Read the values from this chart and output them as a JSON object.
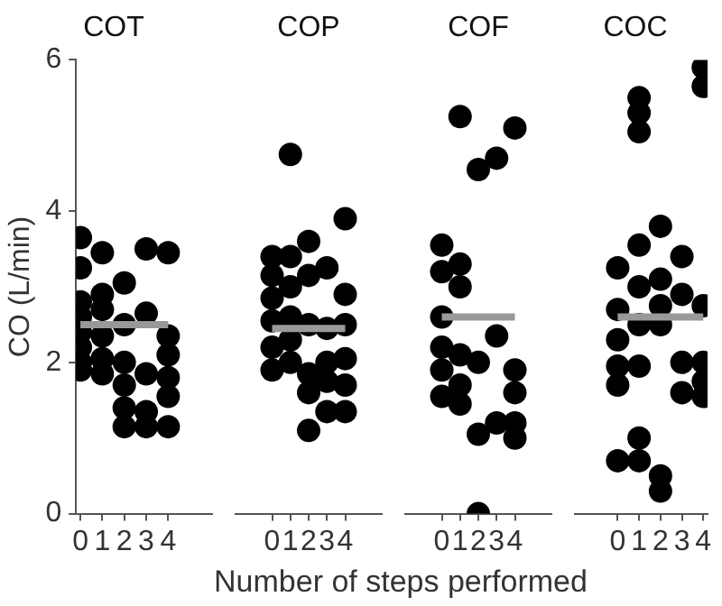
{
  "chart_data": [
    {
      "type": "scatter",
      "title": "COT",
      "xlabel": "Number of steps performed",
      "ylabel": "CO (L/min)",
      "xlim": [
        -0.2,
        6
      ],
      "xticks": [
        0,
        1,
        2,
        3,
        4
      ],
      "ylim": [
        0,
        6
      ],
      "yticks": [
        0,
        2,
        4,
        6
      ],
      "grid": false,
      "legend": false,
      "marker": "circle",
      "series": [
        {
          "color": "#000000",
          "x": [
            0,
            0,
            0,
            0,
            0,
            0,
            0,
            0,
            1,
            1,
            1,
            1,
            1,
            1,
            2,
            2,
            2,
            2,
            2,
            2,
            3,
            3,
            3,
            3,
            3,
            4,
            4,
            4,
            4,
            4,
            4
          ],
          "values": [
            3.65,
            3.25,
            2.8,
            2.6,
            2.4,
            2.2,
            2.0,
            1.9,
            3.45,
            2.9,
            2.7,
            2.35,
            2.05,
            1.85,
            3.05,
            2.5,
            2.0,
            1.7,
            1.4,
            1.15,
            3.5,
            2.65,
            1.85,
            1.35,
            1.15,
            3.45,
            2.35,
            2.1,
            1.8,
            1.55,
            1.15
          ]
        },
        {
          "type": "line",
          "marker": "none",
          "color": "#999999",
          "x": [
            0,
            4
          ],
          "values": [
            2.5,
            2.5
          ]
        }
      ]
    },
    {
      "type": "scatter",
      "title": "COP",
      "xlim": [
        -2,
        6
      ],
      "xticks": [
        0,
        1,
        2,
        3,
        4
      ],
      "ylim": [
        0,
        6
      ],
      "yticks": [
        0,
        2,
        4,
        6
      ],
      "tick_labels": "x",
      "grid": false,
      "legend": false,
      "marker": "circle",
      "series": [
        {
          "color": "#000000",
          "x": [
            0,
            0,
            0,
            0,
            0,
            0,
            1,
            1,
            1,
            1,
            1,
            1,
            2,
            2,
            2,
            2,
            2,
            2,
            3,
            3,
            3,
            3,
            3,
            4,
            4,
            4,
            4,
            4,
            4
          ],
          "values": [
            3.4,
            3.15,
            2.85,
            2.55,
            2.2,
            1.9,
            4.75,
            3.4,
            3.0,
            2.6,
            2.3,
            2.0,
            3.6,
            3.15,
            2.5,
            1.85,
            1.6,
            1.1,
            3.25,
            2.45,
            2.0,
            1.75,
            1.35,
            3.9,
            2.9,
            2.5,
            2.05,
            1.7,
            1.35
          ]
        },
        {
          "type": "line",
          "marker": "none",
          "color": "#999999",
          "x": [
            0,
            4
          ],
          "values": [
            2.45,
            2.45
          ]
        }
      ]
    },
    {
      "type": "scatter",
      "title": "COF",
      "xlim": [
        -2,
        6
      ],
      "xticks": [
        0,
        1,
        2,
        3,
        4
      ],
      "ylim": [
        0,
        6
      ],
      "yticks": [
        0,
        2,
        4,
        6
      ],
      "tick_labels": "x",
      "grid": false,
      "legend": false,
      "marker": "circle",
      "series": [
        {
          "color": "#000000",
          "x": [
            0,
            0,
            0,
            0,
            0,
            0,
            1,
            1,
            1,
            1,
            1,
            1,
            2,
            2,
            2,
            2,
            3,
            3,
            3,
            4,
            4,
            4,
            4,
            4
          ],
          "values": [
            3.55,
            3.2,
            2.6,
            2.2,
            1.9,
            1.55,
            5.25,
            3.3,
            3.0,
            2.1,
            1.7,
            1.45,
            4.55,
            2.0,
            1.05,
            0,
            4.7,
            2.35,
            1.2,
            5.1,
            1.9,
            1.6,
            1.2,
            1.0
          ]
        },
        {
          "type": "line",
          "marker": "none",
          "color": "#999999",
          "x": [
            0,
            4
          ],
          "values": [
            2.6,
            2.6
          ]
        }
      ]
    },
    {
      "type": "scatter",
      "title": "COC",
      "xlim": [
        -2,
        4.2
      ],
      "xticks": [
        0,
        1,
        2,
        3,
        4
      ],
      "ylim": [
        0,
        6
      ],
      "yticks": [
        0,
        2,
        4,
        6
      ],
      "tick_labels": "x",
      "grid": false,
      "legend": false,
      "marker": "circle",
      "series": [
        {
          "color": "#000000",
          "x": [
            0,
            0,
            0,
            0,
            0,
            0,
            1,
            1,
            1,
            1,
            1,
            1,
            1,
            1,
            1,
            2,
            2,
            2,
            2,
            2,
            2,
            3,
            3,
            3,
            3,
            4,
            4,
            4,
            4,
            4,
            4
          ],
          "values": [
            3.25,
            2.7,
            2.3,
            1.95,
            1.7,
            0.7,
            5.5,
            5.3,
            5.05,
            3.55,
            3.0,
            2.5,
            1.95,
            1.0,
            0.7,
            3.8,
            3.1,
            2.75,
            2.5,
            0.5,
            0.3,
            3.4,
            2.9,
            2.0,
            1.6,
            5.9,
            5.65,
            2.75,
            2.0,
            1.75,
            1.55
          ]
        },
        {
          "type": "line",
          "marker": "none",
          "color": "#999999",
          "x": [
            0,
            4
          ],
          "values": [
            2.6,
            2.6
          ]
        }
      ]
    }
  ]
}
